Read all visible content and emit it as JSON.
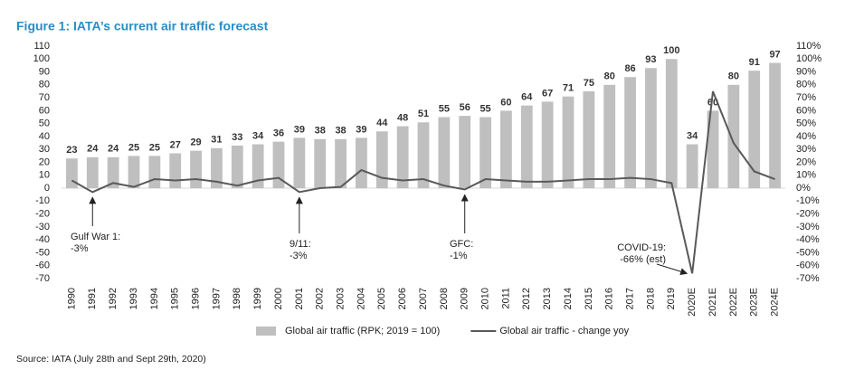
{
  "chart_data": {
    "type": "bar-line",
    "title": "Figure 1: IATA’s current air traffic forecast",
    "source": "Source: IATA (July 28th and Sept 29th, 2020)",
    "categories": [
      "1990",
      "1991",
      "1992",
      "1993",
      "1994",
      "1995",
      "1996",
      "1997",
      "1998",
      "1999",
      "2000",
      "2001",
      "2002",
      "2003",
      "2004",
      "2005",
      "2006",
      "2007",
      "2008",
      "2009",
      "2010",
      "2011",
      "2012",
      "2013",
      "2014",
      "2015",
      "2016",
      "2017",
      "2018",
      "2019",
      "2020E",
      "2021E",
      "2022E",
      "2023E",
      "2024E"
    ],
    "series": [
      {
        "name": "Global air traffic (RPK; 2019 = 100)",
        "type": "bar",
        "color": "#bfbfbf",
        "values": [
          23,
          24,
          24,
          25,
          25,
          27,
          29,
          31,
          33,
          34,
          36,
          39,
          38,
          38,
          39,
          44,
          48,
          51,
          55,
          56,
          55,
          60,
          64,
          67,
          71,
          75,
          80,
          86,
          93,
          100,
          34,
          60,
          80,
          91,
          97
        ]
      },
      {
        "name": "Global air traffic - change yoy",
        "type": "line",
        "axis": "y2",
        "color": "#595959",
        "values": [
          6,
          -3,
          4,
          1,
          7,
          6,
          7,
          5,
          2,
          6,
          8,
          -3,
          0,
          1,
          14,
          8,
          6,
          7,
          2,
          -1,
          7,
          6,
          5,
          5,
          6,
          7,
          7,
          8,
          7,
          4,
          -66,
          75,
          35,
          13,
          7
        ]
      }
    ],
    "annotations": [
      {
        "lines": [
          "Gulf War 1:",
          "-3%"
        ]
      },
      {
        "lines": [
          "9/11:",
          "-3%"
        ]
      },
      {
        "lines": [
          "GFC:",
          "-1%"
        ]
      },
      {
        "lines": [
          "COVID-19:",
          "-66% (est)"
        ]
      }
    ],
    "ylim": [
      -70,
      110
    ],
    "yticks": [
      -70,
      -60,
      -50,
      -40,
      -30,
      -20,
      -10,
      0,
      10,
      20,
      30,
      40,
      50,
      60,
      70,
      80,
      90,
      100,
      110
    ],
    "y2lim": [
      -70,
      110
    ],
    "y2ticks": [
      {
        "value": -70,
        "label": "-70%"
      },
      {
        "value": -60,
        "label": "-60%"
      },
      {
        "value": -50,
        "label": "-50%"
      },
      {
        "value": -40,
        "label": "-40%"
      },
      {
        "value": -30,
        "label": "-30%"
      },
      {
        "value": -20,
        "label": "-20%"
      },
      {
        "value": -10,
        "label": "-10%"
      },
      {
        "value": 0,
        "label": "0%"
      },
      {
        "value": 10,
        "label": "10%"
      },
      {
        "value": 20,
        "label": "20%"
      },
      {
        "value": 30,
        "label": "30%"
      },
      {
        "value": 40,
        "label": "40%"
      },
      {
        "value": 50,
        "label": "50%"
      },
      {
        "value": 60,
        "label": "60%"
      },
      {
        "value": 70,
        "label": "70%"
      },
      {
        "value": 80,
        "label": "80%"
      },
      {
        "value": 90,
        "label": "90%"
      },
      {
        "value": 100,
        "label": "100%"
      },
      {
        "value": 110,
        "label": "110%"
      }
    ],
    "grid": false
  }
}
